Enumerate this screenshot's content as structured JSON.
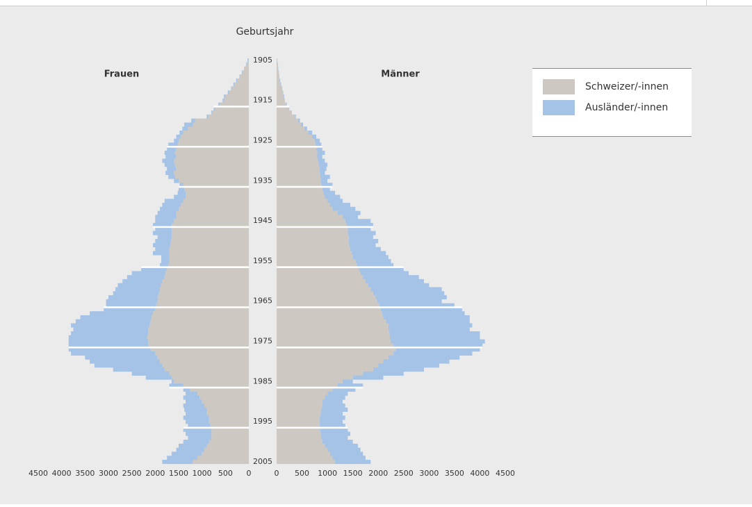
{
  "chart_data": {
    "type": "pyramid",
    "y_axis_label": "Geburtsjahr",
    "categories": [
      "1905",
      null,
      null,
      null,
      null,
      null,
      null,
      null,
      null,
      null,
      "1915",
      null,
      null,
      null,
      null,
      null,
      null,
      null,
      null,
      null,
      "1925",
      null,
      null,
      null,
      null,
      null,
      null,
      null,
      null,
      null,
      "1935",
      null,
      null,
      null,
      null,
      null,
      null,
      null,
      null,
      null,
      "1945",
      null,
      null,
      null,
      null,
      null,
      null,
      null,
      null,
      null,
      "1955",
      null,
      null,
      null,
      null,
      null,
      null,
      null,
      null,
      null,
      "1965",
      null,
      null,
      null,
      null,
      null,
      null,
      null,
      null,
      null,
      "1975",
      null,
      null,
      null,
      null,
      null,
      null,
      null,
      null,
      null,
      "1985",
      null,
      null,
      null,
      null,
      null,
      null,
      null,
      null,
      null,
      "1995",
      null,
      null,
      null,
      null,
      null,
      null,
      null,
      null,
      null,
      "2005"
    ],
    "left": {
      "title": "Frauen",
      "xlim": [
        0,
        4500
      ],
      "xticks": [
        0,
        500,
        1000,
        1500,
        2000,
        2500,
        3000,
        3500,
        4000,
        4500
      ],
      "series": [
        {
          "name": "Schweizer/-innen",
          "color": "#cdc8c2",
          "values": [
            20,
            50,
            90,
            140,
            190,
            250,
            310,
            360,
            420,
            500,
            530,
            620,
            720,
            780,
            870,
            1150,
            1190,
            1300,
            1400,
            1450,
            1500,
            1520,
            1550,
            1580,
            1560,
            1600,
            1580,
            1560,
            1600,
            1580,
            1500,
            1400,
            1380,
            1350,
            1350,
            1400,
            1450,
            1500,
            1550,
            1550,
            1600,
            1650,
            1650,
            1650,
            1650,
            1660,
            1680,
            1700,
            1700,
            1700,
            1700,
            1720,
            1750,
            1780,
            1800,
            1850,
            1880,
            1900,
            1920,
            1950,
            1950,
            1980,
            2000,
            2050,
            2080,
            2100,
            2120,
            2150,
            2150,
            2170,
            2150,
            2150,
            2100,
            2000,
            1950,
            1900,
            1850,
            1800,
            1700,
            1650,
            1600,
            1400,
            1250,
            1100,
            1050,
            1000,
            950,
            900,
            900,
            850,
            850,
            820,
            800,
            800,
            800,
            850,
            900,
            950,
            1000,
            1100,
            1200
          ]
        },
        {
          "name": "Ausländer/-innen",
          "color": "#a4c3e6",
          "values": [
            10,
            10,
            10,
            10,
            10,
            20,
            20,
            20,
            30,
            30,
            30,
            30,
            30,
            20,
            30,
            80,
            190,
            120,
            80,
            100,
            100,
            200,
            200,
            220,
            220,
            250,
            220,
            190,
            180,
            140,
            100,
            80,
            120,
            170,
            250,
            400,
            400,
            400,
            400,
            450,
            400,
            400,
            350,
            400,
            300,
            340,
            370,
            300,
            350,
            170,
            170,
            180,
            550,
            720,
            800,
            850,
            920,
            950,
            980,
            1050,
            1100,
            1070,
            1100,
            1350,
            1520,
            1600,
            1680,
            1600,
            1650,
            1680,
            1700,
            1700,
            1750,
            1800,
            1550,
            1500,
            1450,
            1100,
            800,
            550,
            50,
            300,
            150,
            250,
            350,
            350,
            450,
            480,
            450,
            550,
            500,
            480,
            600,
            550,
            500,
            550,
            600,
            600,
            650,
            650,
            650
          ]
        }
      ]
    },
    "right": {
      "title": "Männer",
      "xlim": [
        0,
        4500
      ],
      "xticks": [
        0,
        500,
        1000,
        1500,
        2000,
        2500,
        3000,
        3500,
        4000,
        4500
      ],
      "series": [
        {
          "color": "#cdc8c2",
          "values": [
            10,
            20,
            30,
            40,
            50,
            60,
            80,
            100,
            120,
            140,
            150,
            190,
            240,
            290,
            360,
            420,
            480,
            550,
            620,
            700,
            750,
            770,
            780,
            800,
            800,
            820,
            830,
            850,
            850,
            860,
            870,
            880,
            900,
            920,
            950,
            1000,
            1050,
            1100,
            1200,
            1300,
            1350,
            1380,
            1400,
            1400,
            1420,
            1420,
            1430,
            1450,
            1480,
            1500,
            1550,
            1580,
            1620,
            1650,
            1700,
            1750,
            1800,
            1850,
            1900,
            1950,
            1980,
            2020,
            2050,
            2080,
            2100,
            2150,
            2200,
            2200,
            2220,
            2230,
            2250,
            2300,
            2350,
            2300,
            2200,
            2100,
            2000,
            1900,
            1700,
            1500,
            1300,
            1200,
            1100,
            1000,
            950,
            900,
            900,
            880,
            870,
            850,
            850,
            850,
            850,
            870,
            880,
            900,
            950,
            1000,
            1050,
            1100,
            1150
          ]
        },
        {
          "color": "#a4c3e6",
          "values": [
            5,
            5,
            5,
            5,
            5,
            10,
            10,
            10,
            10,
            10,
            10,
            10,
            10,
            10,
            20,
            40,
            40,
            50,
            80,
            80,
            100,
            110,
            120,
            150,
            100,
            130,
            170,
            130,
            100,
            190,
            130,
            220,
            150,
            230,
            300,
            300,
            400,
            450,
            450,
            300,
            500,
            520,
            450,
            550,
            480,
            580,
            520,
            600,
            670,
            700,
            700,
            720,
            880,
            950,
            1100,
            1150,
            1200,
            1400,
            1400,
            1400,
            1270,
            1480,
            1600,
            1620,
            1700,
            1650,
            1650,
            1600,
            1780,
            1770,
            1850,
            1750,
            1650,
            1550,
            1400,
            1300,
            1200,
            1000,
            800,
            600,
            200,
            500,
            450,
            400,
            400,
            400,
            450,
            520,
            430,
            500,
            450,
            500,
            550,
            580,
            520,
            600,
            650,
            650,
            650,
            650,
            700
          ]
        }
      ]
    }
  }
}
